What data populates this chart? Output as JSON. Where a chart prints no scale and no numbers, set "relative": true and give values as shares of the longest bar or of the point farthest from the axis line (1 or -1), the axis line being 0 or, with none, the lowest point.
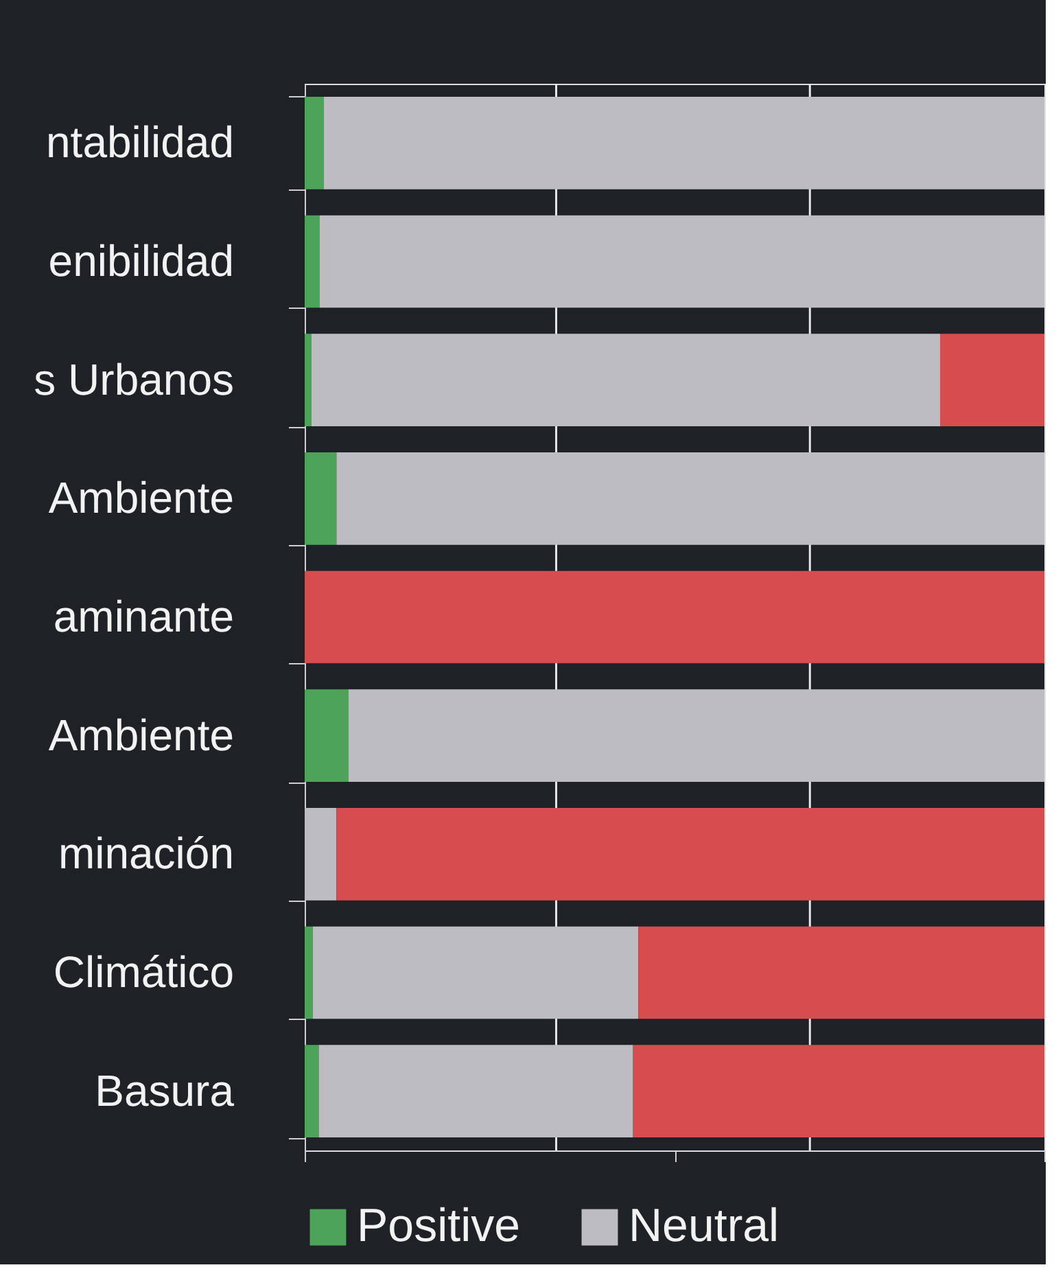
{
  "chart_data": {
    "type": "bar",
    "orientation": "horizontal",
    "stacked": true,
    "relative": true,
    "legend": "bottom",
    "ref_lines": [
      {
        "axis": "x",
        "value": 0.34,
        "color": "#e6e6e6"
      },
      {
        "axis": "x",
        "value": 0.683,
        "color": "#e6e6e6"
      }
    ],
    "categories": [
      "ntabilidad",
      "enibilidad",
      "s Urbanos",
      "Ambiente",
      "aminante",
      "Ambiente",
      "minación",
      "Climático",
      "Basura"
    ],
    "series": [
      {
        "name": "Positive",
        "color": "#4ea35a",
        "values": [
          0.026,
          0.02,
          0.009,
          0.043,
          0,
          0.059,
          0,
          0.011,
          0.019
        ]
      },
      {
        "name": "Neutral",
        "color": "#bdbcc1",
        "values": [
          0.974,
          0.98,
          0.85,
          0.957,
          0,
          0.941,
          0.043,
          0.44,
          0.425
        ]
      },
      {
        "color": "#d64c4f",
        "values": [
          0,
          0,
          0.141,
          0,
          1,
          0,
          0.957,
          0.549,
          0.556
        ]
      }
    ]
  }
}
